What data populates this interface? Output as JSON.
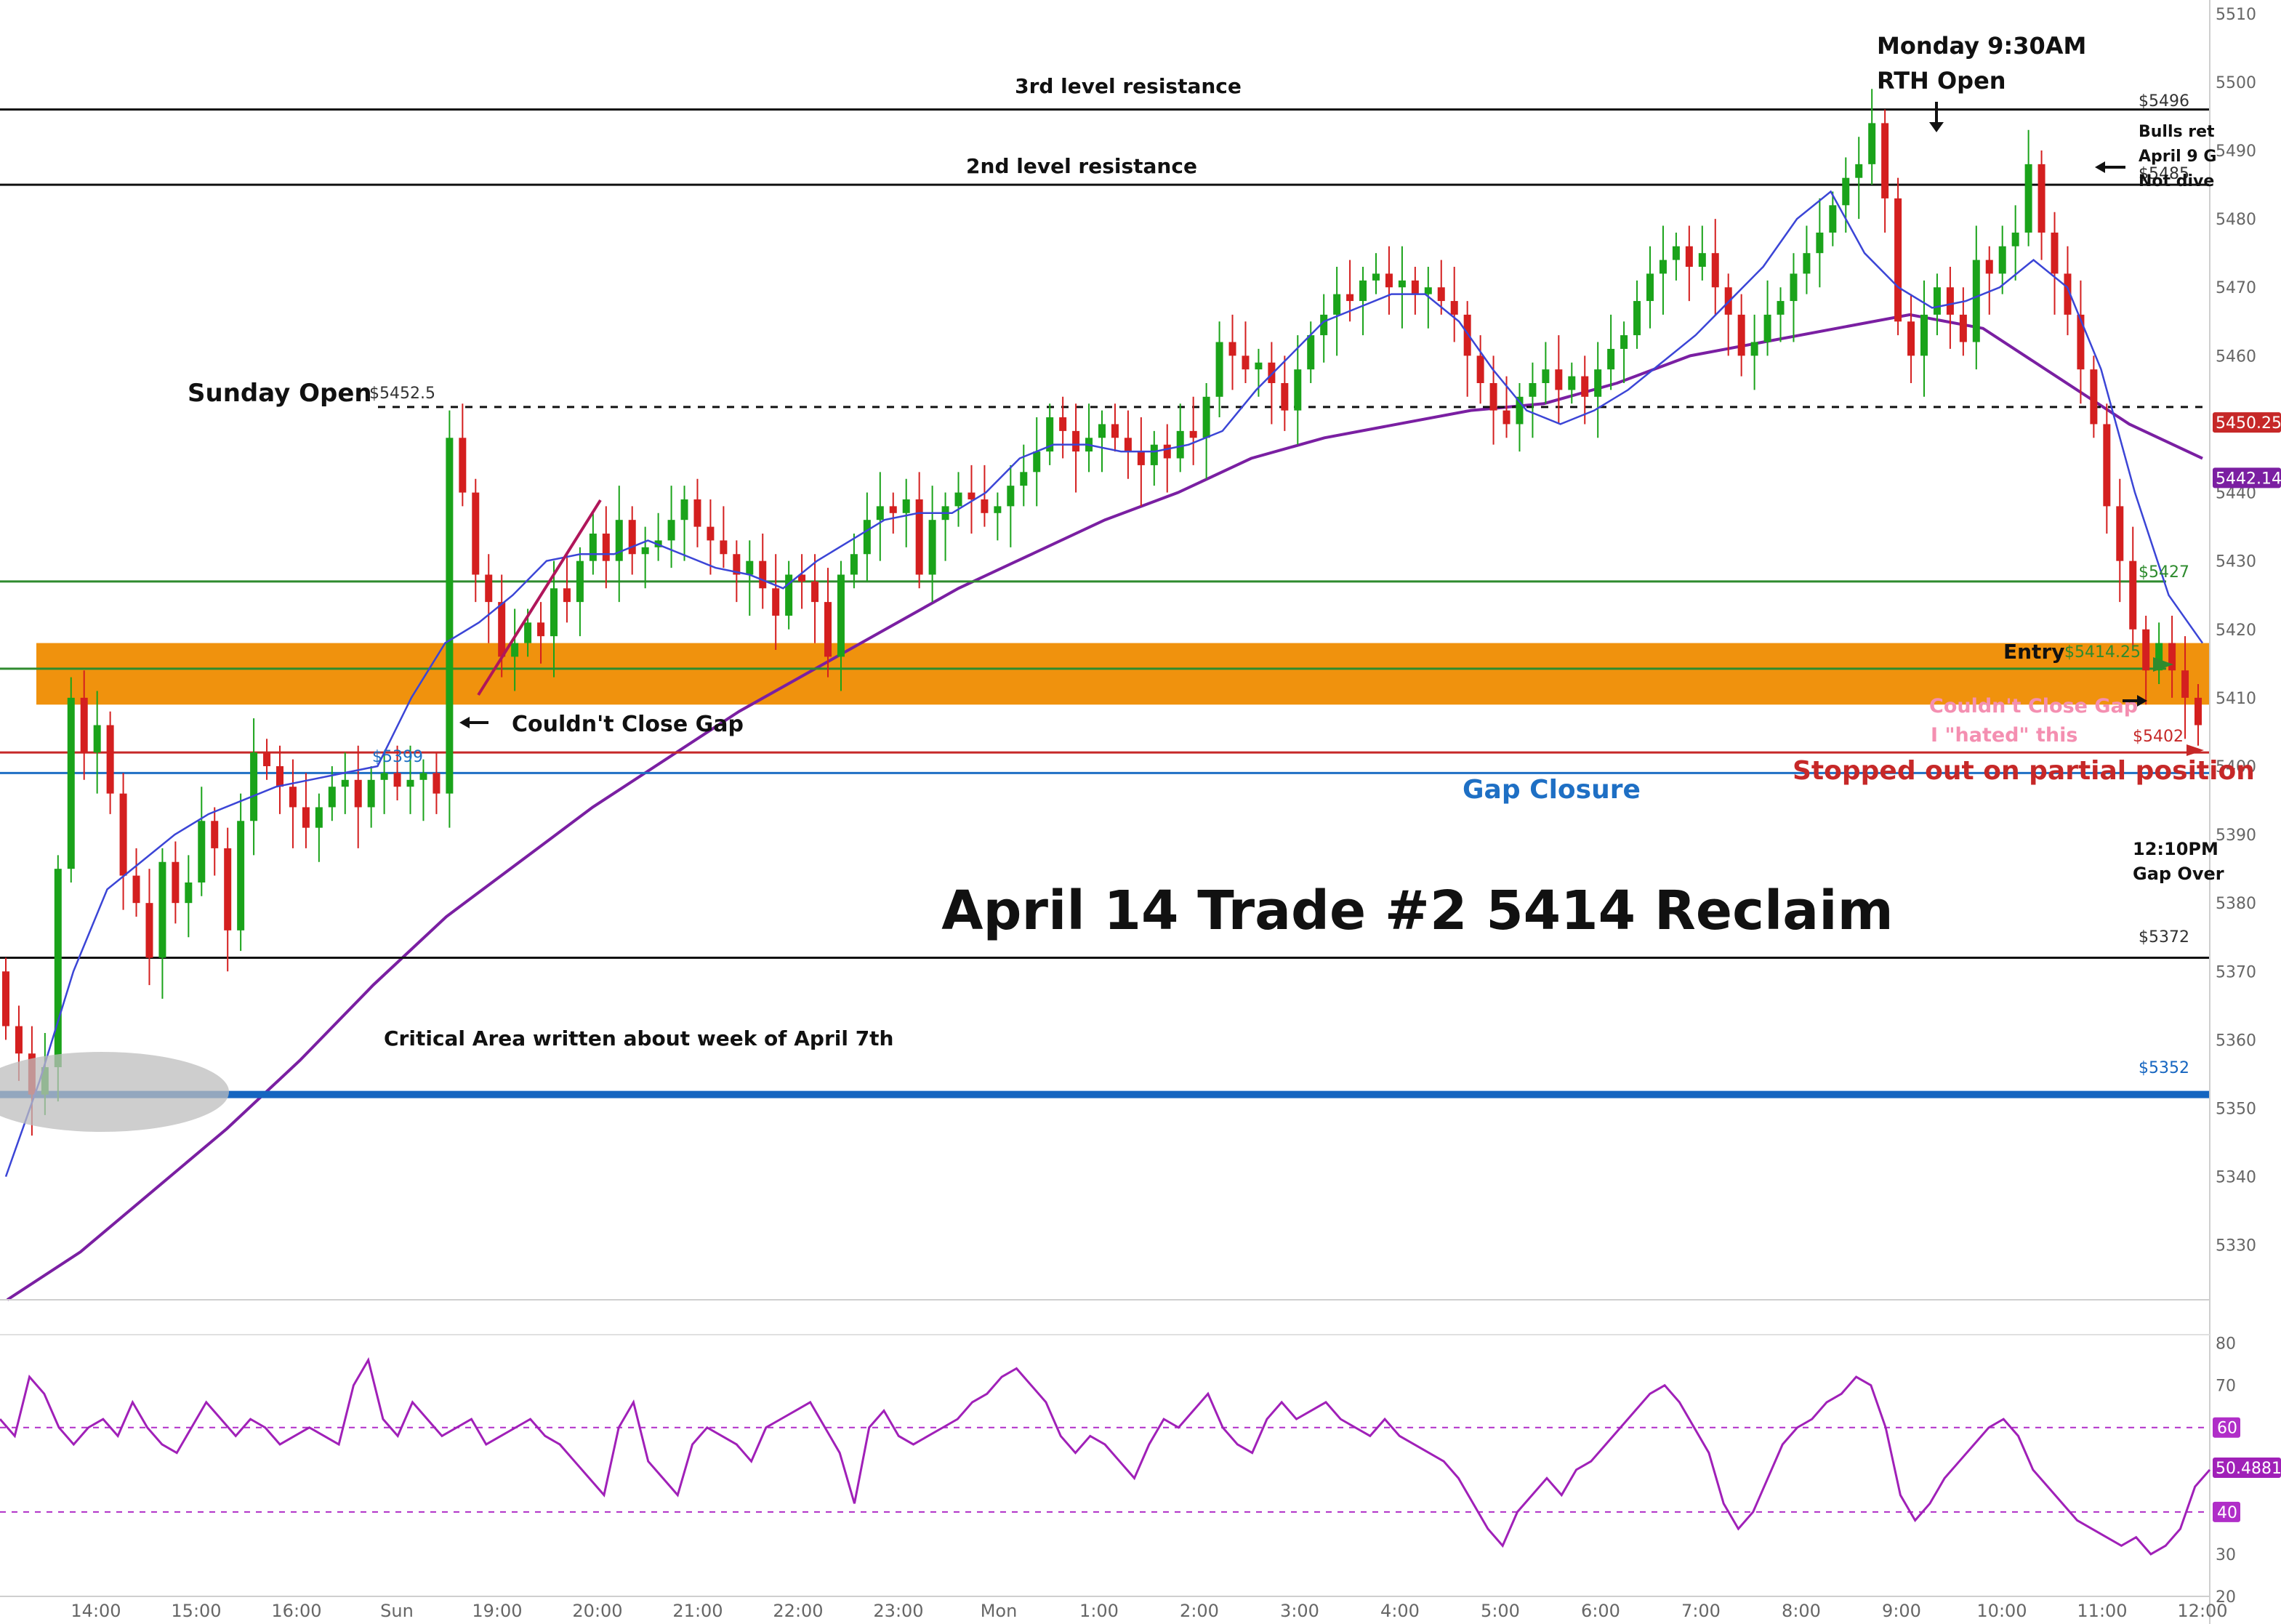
{
  "chart_data": {
    "type": "candlestick",
    "title": "April 14 Trade #2 5414 Reclaim",
    "x_ticks": [
      "14:00",
      "15:00",
      "16:00",
      "Sun",
      "19:00",
      "20:00",
      "21:00",
      "22:00",
      "23:00",
      "Mon",
      "1:00",
      "2:00",
      "3:00",
      "4:00",
      "5:00",
      "6:00",
      "7:00",
      "8:00",
      "9:00",
      "10:00",
      "11:00",
      "12:00"
    ],
    "y_ticks": [
      5330,
      5340,
      5350,
      5360,
      5370,
      5380,
      5390,
      5400,
      5410,
      5420,
      5430,
      5440,
      5450,
      5460,
      5470,
      5480,
      5490,
      5500,
      5510
    ],
    "ylim": [
      5322,
      5512
    ],
    "levels": [
      {
        "name": "3rd level resistance",
        "price": 5496,
        "label": "$5496",
        "color": "#111111",
        "style": "solid"
      },
      {
        "name": "2nd level resistance",
        "price": 5485,
        "label": "$5485",
        "color": "#111111",
        "style": "solid"
      },
      {
        "name": "Sunday Open",
        "price": 5452.5,
        "label": "$5452.5",
        "color": "#111111",
        "style": "dashed"
      },
      {
        "name": "",
        "price": 5427,
        "label": "$5427",
        "color": "#2e8b2e",
        "style": "solid"
      },
      {
        "name": "",
        "price": 5414.25,
        "label": "$5414.25",
        "color": "#2e8b2e",
        "style": "solid"
      },
      {
        "name": "",
        "price": 5402,
        "label": "$5402",
        "color": "#c62828",
        "style": "solid"
      },
      {
        "name": "Gap Closure",
        "price": 5399,
        "label": "$5399",
        "color": "#1e6fc4",
        "style": "solid"
      },
      {
        "name": "",
        "price": 5372,
        "label": "$5372",
        "color": "#111111",
        "style": "solid"
      },
      {
        "name": "",
        "price": 5352,
        "label": "$5352",
        "color": "#1565c0",
        "style": "thick"
      }
    ],
    "price_badges": [
      {
        "price": 5450.25,
        "label": "5450.25",
        "color": "#c62828"
      },
      {
        "price": 5442.14,
        "label": "5442.14",
        "color": "#7b1fa2"
      }
    ],
    "zone": {
      "from": 5409,
      "to": 5418
    },
    "series_close": [
      5362,
      5358,
      5352,
      5356,
      5385,
      5410,
      5402,
      5406,
      5396,
      5384,
      5380,
      5372,
      5386,
      5380,
      5383,
      5392,
      5388,
      5376,
      5392,
      5402,
      5400,
      5397,
      5394,
      5391,
      5394,
      5397,
      5398,
      5394,
      5398,
      5399,
      5397,
      5398,
      5399,
      5396,
      5448,
      5440,
      5428,
      5424,
      5416,
      5418,
      5421,
      5419,
      5426,
      5424,
      5430,
      5434,
      5430,
      5436,
      5431,
      5432,
      5433,
      5436,
      5439,
      5435,
      5433,
      5431,
      5428,
      5430,
      5426,
      5422,
      5428,
      5427,
      5424,
      5416,
      5428,
      5431,
      5436,
      5438,
      5437,
      5439,
      5428,
      5436,
      5438,
      5440,
      5439,
      5437,
      5438,
      5441,
      5443,
      5446,
      5451,
      5449,
      5446,
      5448,
      5450,
      5448,
      5446,
      5444,
      5447,
      5445,
      5449,
      5448,
      5454,
      5462,
      5460,
      5458,
      5459,
      5456,
      5452,
      5458,
      5463,
      5466,
      5469,
      5468,
      5471,
      5472,
      5470,
      5471,
      5469,
      5470,
      5468,
      5466,
      5460,
      5456,
      5452,
      5450,
      5454,
      5456,
      5458,
      5455,
      5457,
      5454,
      5458,
      5461,
      5463,
      5468,
      5472,
      5474,
      5476,
      5473,
      5475,
      5470,
      5466,
      5460,
      5462,
      5466,
      5468,
      5472,
      5475,
      5478,
      5482,
      5486,
      5488,
      5494,
      5483,
      5465,
      5460,
      5466,
      5470,
      5466,
      5462,
      5474,
      5472,
      5476,
      5478,
      5488,
      5478,
      5472,
      5466,
      5458,
      5450,
      5438,
      5430,
      5420,
      5414,
      5418,
      5414,
      5410,
      5406
    ],
    "vwap": [
      5340,
      5354,
      5370,
      5382,
      5386,
      5390,
      5393,
      5395,
      5397,
      5398,
      5399,
      5400,
      5410,
      5418,
      5421,
      5425,
      5430,
      5431,
      5431,
      5433,
      5431,
      5429,
      5428,
      5426,
      5430,
      5433,
      5436,
      5437,
      5437,
      5440,
      5445,
      5447,
      5447,
      5446,
      5446,
      5447,
      5449,
      5455,
      5460,
      5465,
      5467,
      5469,
      5469,
      5465,
      5458,
      5452,
      5450,
      5452,
      5455,
      5459,
      5463,
      5468,
      5473,
      5480,
      5484,
      5475,
      5470,
      5467,
      5468,
      5470,
      5474,
      5470,
      5458,
      5440,
      5425,
      5418
    ],
    "ema": [
      5322,
      5329,
      5338,
      5347,
      5357,
      5368,
      5378,
      5386,
      5394,
      5401,
      5408,
      5414,
      5420,
      5426,
      5431,
      5436,
      5440,
      5445,
      5448,
      5450,
      5452,
      5453,
      5456,
      5460,
      5462,
      5464,
      5466,
      5464,
      5457,
      5450,
      5445
    ],
    "annotations": [
      "Monday 9:30AM",
      "RTH Open",
      "Bulls ret",
      "April 9 G",
      "Not dive",
      "Sunday Open",
      "Couldn't Close Gap",
      "Entry",
      "Couldn't Close Gap",
      "I \"hated\" this",
      "Stopped out on partial position",
      "Gap Closure",
      "12:10PM",
      "Gap Over",
      "Critical Area written about week of April 7th",
      "2nd level resistance",
      "3rd level resistance"
    ],
    "rsi": {
      "ylim": [
        20,
        82
      ],
      "y_ticks": [
        20,
        30,
        40,
        50,
        60,
        70,
        80
      ],
      "levels": [
        60,
        40
      ],
      "level_labels": [
        "60",
        "40"
      ],
      "current": 50.4881,
      "current_label": "50.4881",
      "values": [
        62,
        58,
        72,
        68,
        60,
        56,
        60,
        62,
        58,
        66,
        60,
        56,
        54,
        60,
        66,
        62,
        58,
        62,
        60,
        56,
        58,
        60,
        58,
        56,
        70,
        76,
        62,
        58,
        66,
        62,
        58,
        60,
        62,
        56,
        58,
        60,
        62,
        58,
        56,
        52,
        48,
        44,
        60,
        66,
        52,
        48,
        44,
        56,
        60,
        58,
        56,
        52,
        60,
        62,
        64,
        66,
        60,
        54,
        42,
        60,
        64,
        58,
        56,
        58,
        60,
        62,
        66,
        68,
        72,
        74,
        70,
        66,
        58,
        54,
        58,
        56,
        52,
        48,
        56,
        62,
        60,
        64,
        68,
        60,
        56,
        54,
        62,
        66,
        62,
        64,
        66,
        62,
        60,
        58,
        62,
        58,
        56,
        54,
        52,
        48,
        42,
        36,
        32,
        40,
        44,
        48,
        44,
        50,
        52,
        56,
        60,
        64,
        68,
        70,
        66,
        60,
        54,
        42,
        36,
        40,
        48,
        56,
        60,
        62,
        66,
        68,
        72,
        70,
        60,
        44,
        38,
        42,
        48,
        52,
        56,
        60,
        62,
        58,
        50,
        46,
        42,
        38,
        36,
        34,
        32,
        34,
        30,
        32,
        36,
        46,
        50
      ]
    }
  },
  "labels": {
    "title": "April 14 Trade #2 5414 Reclaim",
    "monday_line1": "Monday 9:30AM",
    "monday_line2": "RTH Open",
    "bulls1": "Bulls ret",
    "bulls2": "April 9 G",
    "bulls3": "Not dive",
    "sunday_open": "Sunday Open",
    "sunday_open_price": "$5452.5",
    "couldnt_close_gap": "Couldn't Close Gap",
    "entry": "Entry",
    "entry_price": "$5414.25",
    "couldnt_close_gap_pink": "Couldn't Close Gap",
    "hated": "I \"hated\" this",
    "stopped": "Stopped out on partial position",
    "gap_closure": "Gap Closure",
    "gap_price": "$5399",
    "t1210": "12:10PM",
    "gap_over": "Gap Over",
    "critical": "Critical Area written about week of April 7th",
    "res2": "2nd level resistance",
    "res3": "3rd level resistance",
    "p5496": "$5496",
    "p5485": "$5485",
    "p5427": "$5427",
    "p5402": "$5402",
    "p5372": "$5372",
    "p5352": "$5352"
  }
}
